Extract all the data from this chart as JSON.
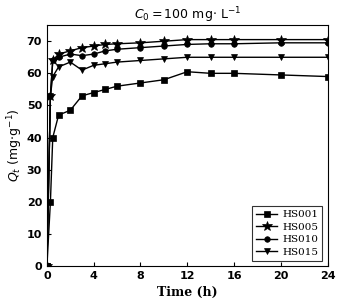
{
  "title": "$C_0 = 100\\ \\mathrm{mg{\\cdot}\\ L^{-1}}$",
  "xlabel": "Time (h)",
  "ylabel": "$Q_t\\ (\\mathrm{mg{\\cdot} g^{-1}})$",
  "xlim": [
    0,
    24
  ],
  "ylim": [
    0,
    75
  ],
  "yticks": [
    0,
    10,
    20,
    30,
    40,
    50,
    60,
    70
  ],
  "xticks": [
    0,
    4,
    8,
    12,
    16,
    20,
    24
  ],
  "series": {
    "HS001": {
      "time": [
        0,
        0.3,
        0.5,
        1.0,
        2.0,
        3.0,
        4.0,
        5.0,
        6.0,
        8.0,
        10.0,
        12.0,
        14.0,
        16.0,
        20.0,
        24.0
      ],
      "values": [
        0,
        20,
        40,
        47,
        48.5,
        53,
        54,
        55,
        56,
        57,
        58,
        60.5,
        60,
        60,
        59.5,
        59
      ],
      "marker": "s",
      "markersize": 4
    },
    "HS005": {
      "time": [
        0,
        0.3,
        0.5,
        1.0,
        2.0,
        3.0,
        4.0,
        5.0,
        6.0,
        8.0,
        10.0,
        12.0,
        14.0,
        16.0,
        20.0,
        24.0
      ],
      "values": [
        0,
        53,
        64,
        66,
        67,
        68,
        68.5,
        69,
        69.2,
        69.5,
        70,
        70.5,
        70.5,
        70.5,
        70.5,
        70.5
      ],
      "marker": "*",
      "markersize": 7
    },
    "HS010": {
      "time": [
        0,
        0.3,
        0.5,
        1.0,
        2.0,
        3.0,
        4.0,
        5.0,
        6.0,
        8.0,
        10.0,
        12.0,
        14.0,
        16.0,
        20.0,
        24.0
      ],
      "values": [
        0,
        53,
        64,
        65,
        66,
        65.5,
        66,
        67,
        67.5,
        68,
        68.5,
        69,
        69.2,
        69.2,
        69.5,
        69.5
      ],
      "marker": "o",
      "markersize": 4
    },
    "HS015": {
      "time": [
        0,
        0.3,
        0.5,
        1.0,
        2.0,
        3.0,
        4.0,
        5.0,
        6.0,
        8.0,
        10.0,
        12.0,
        14.0,
        16.0,
        20.0,
        24.0
      ],
      "values": [
        0,
        53,
        59,
        62,
        63.5,
        61,
        62.5,
        63,
        63.5,
        64,
        64.5,
        65,
        65,
        65,
        65,
        65
      ],
      "marker": "v",
      "markersize": 5
    }
  },
  "legend_loc": "lower right",
  "background_color": "#ffffff"
}
